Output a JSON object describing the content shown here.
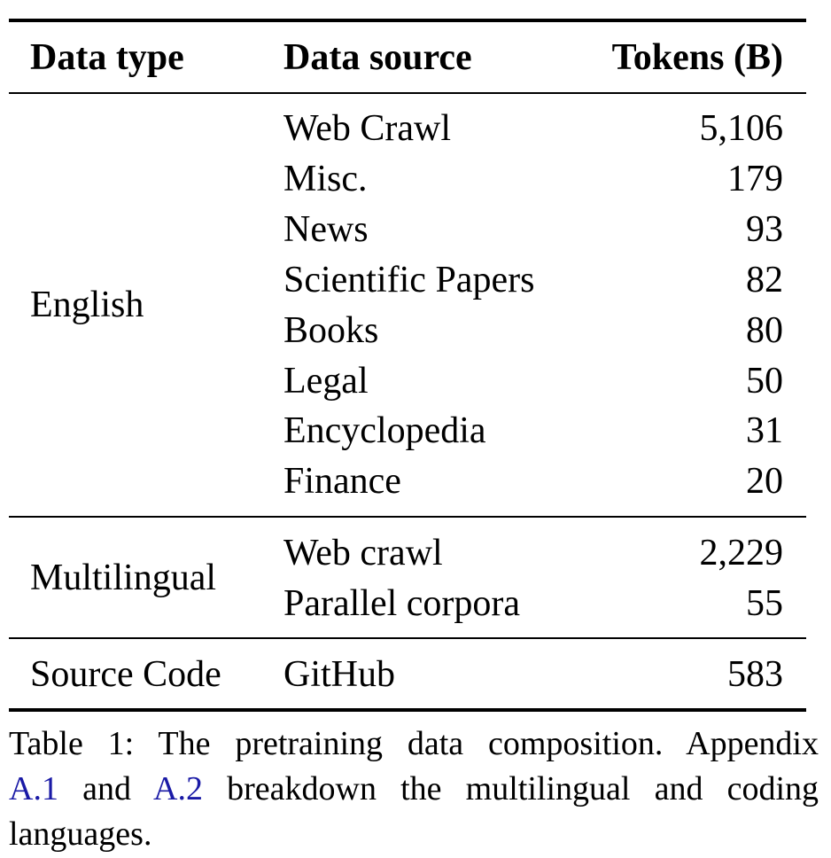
{
  "table": {
    "headers": {
      "type": "Data type",
      "source": "Data source",
      "tokens": "Tokens (B)"
    },
    "groups": [
      {
        "type": "English",
        "rows": [
          {
            "source": "Web Crawl",
            "tokens": "5,106"
          },
          {
            "source": "Misc.",
            "tokens": "179"
          },
          {
            "source": "News",
            "tokens": "93"
          },
          {
            "source": "Scientific Papers",
            "tokens": "82"
          },
          {
            "source": "Books",
            "tokens": "80"
          },
          {
            "source": "Legal",
            "tokens": "50"
          },
          {
            "source": "Encyclopedia",
            "tokens": "31"
          },
          {
            "source": "Finance",
            "tokens": "20"
          }
        ]
      },
      {
        "type": "Multilingual",
        "rows": [
          {
            "source": "Web crawl",
            "tokens": "2,229"
          },
          {
            "source": "Parallel corpora",
            "tokens": "55"
          }
        ]
      },
      {
        "type": "Source Code",
        "rows": [
          {
            "source": "GitHub",
            "tokens": "583"
          }
        ]
      }
    ]
  },
  "caption": {
    "line1": "Table 1: The pretraining data composition. Appendix",
    "ref1": "A.1",
    "and": "and",
    "ref2": "A.2",
    "line2_rest": "breakdown the multilingual and coding",
    "line3": "languages.",
    "ref_color": "#1a1aa6"
  }
}
